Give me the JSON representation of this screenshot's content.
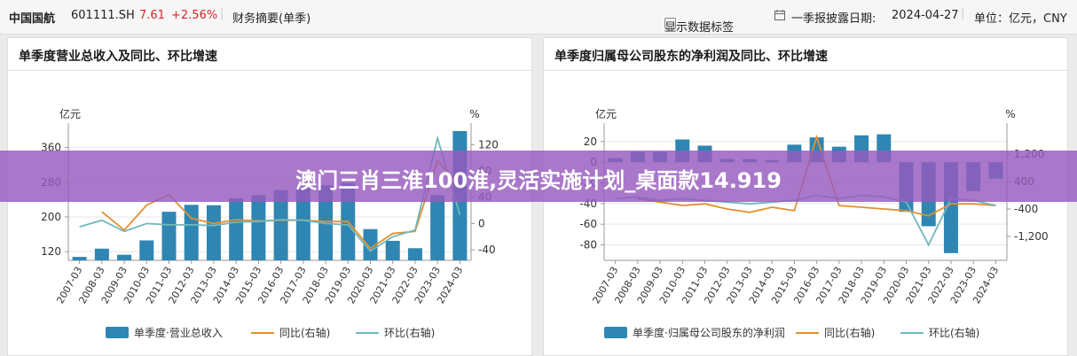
{
  "header": {
    "stock_name": "中国国航",
    "stock_code": "601111.SH",
    "price": "7.61",
    "change": "+2.56%",
    "report_type": "财务摘要(单季)",
    "show_labels": "显示数据标签",
    "disclosure_label": "一季报披露日期:",
    "disclosure_date": "2024-04-27",
    "unit": "单位：亿元，CNY",
    "colors": {
      "up": "#d9262c",
      "accent_bar": "#2f86b2",
      "yoy_line": "#e3902f",
      "qoq_line": "#6fb8bd"
    }
  },
  "banner": {
    "text": "澳门三肖三淮100淮,灵活实施计划_桌面款14.919"
  },
  "chart_data": [
    {
      "type": "bar",
      "title": "单季度营业总收入及同比、环比增速",
      "ylabel_left": "亿元",
      "ylabel_right": "%",
      "categories": [
        "2007-03",
        "2008-03",
        "2009-03",
        "2010-03",
        "2011-03",
        "2012-03",
        "2013-03",
        "2014-03",
        "2015-03",
        "2016-03",
        "2017-03",
        "2018-03",
        "2019-03",
        "2020-03",
        "2021-03",
        "2022-03",
        "2023-03",
        "2024-03"
      ],
      "left_ticks": [
        "120",
        "200",
        "280",
        "360"
      ],
      "right_ticks": [
        "-40",
        "0",
        "40",
        "80",
        "120"
      ],
      "ylim_left": [
        100,
        400
      ],
      "ylim_right": [
        -56,
        142
      ],
      "series": [
        {
          "name": "单季度·营业总收入",
          "kind": "bar",
          "axis": "left",
          "color": "#2f86b2",
          "values": [
            108,
            127,
            113,
            146,
            212,
            228,
            227,
            243,
            250,
            262,
            270,
            273,
            278,
            172,
            145,
            128,
            250,
            398
          ]
        },
        {
          "name": "同比(右轴)",
          "kind": "line",
          "axis": "right",
          "color": "#e3902f",
          "values": [
            null,
            18,
            -10,
            28,
            44,
            8,
            0,
            6,
            4,
            5,
            5,
            3,
            3,
            -38,
            -15,
            -12,
            96,
            58
          ]
        },
        {
          "name": "环比(右轴)",
          "kind": "line",
          "axis": "right",
          "color": "#6fb8bd",
          "values": [
            -5,
            5,
            -12,
            0,
            -2,
            -2,
            -3,
            2,
            3,
            6,
            5,
            0,
            -2,
            -42,
            -20,
            -10,
            130,
            13
          ]
        }
      ]
    },
    {
      "type": "bar",
      "title": "单季度归属母公司股东的净利润及同比、环比增速",
      "ylabel_left": "亿元",
      "ylabel_right": "%",
      "categories": [
        "2007-03",
        "2008-03",
        "2009-03",
        "2010-03",
        "2011-03",
        "2012-03",
        "2013-03",
        "2014-03",
        "2015-03",
        "2016-03",
        "2017-03",
        "2018-03",
        "2019-03",
        "2020-03",
        "2021-03",
        "2022-03",
        "2023-03",
        "2024-03"
      ],
      "left_ticks": [
        "-80",
        "-60",
        "-40",
        "-20",
        "0",
        "20"
      ],
      "right_ticks": [
        "-1,200",
        "-400",
        "400",
        "1,200"
      ],
      "ylim_left": [
        -95,
        31
      ],
      "ylim_right": [
        -1900,
        1900
      ],
      "series": [
        {
          "name": "单季度·归属母公司股东的净利润",
          "kind": "bar",
          "axis": "left",
          "color": "#2f86b2",
          "values": [
            4,
            10,
            10,
            22,
            16,
            3,
            3,
            2,
            17,
            24,
            15,
            26,
            27,
            -48,
            -62,
            -88,
            -28,
            -16
          ]
        },
        {
          "name": "同比(右轴)",
          "kind": "line",
          "axis": "right",
          "color": "#e3902f",
          "values": [
            null,
            -100,
            -200,
            -300,
            -250,
            -400,
            -500,
            -350,
            -450,
            1700,
            -300,
            -350,
            -400,
            -450,
            -600,
            -250,
            -250,
            -300
          ]
        },
        {
          "name": "环比(右轴)",
          "kind": "line",
          "axis": "right",
          "color": "#6fb8bd",
          "values": [
            -100,
            -50,
            -150,
            -100,
            -150,
            -200,
            -250,
            -200,
            -150,
            0,
            -100,
            0,
            -50,
            -200,
            -1450,
            -100,
            -150,
            -300
          ]
        }
      ]
    }
  ]
}
